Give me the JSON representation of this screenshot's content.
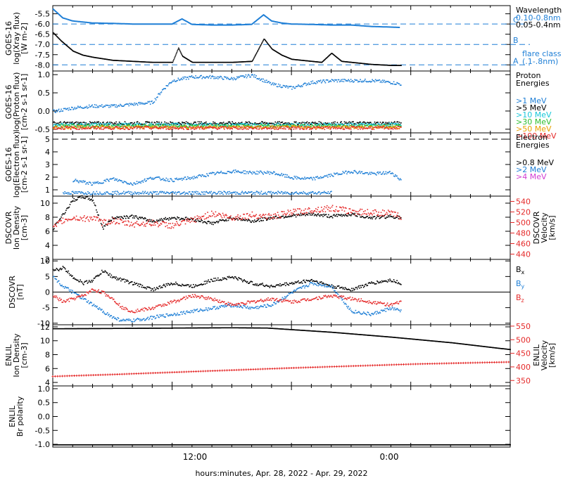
{
  "colors": {
    "black": "#000000",
    "blue": "#1f7fd6",
    "cyan": "#19c7d9",
    "green": "#2fbf2f",
    "orange": "#e8a100",
    "red": "#e52a2a",
    "magenta": "#d23cd2"
  },
  "xaxis": {
    "label": "hours:minutes, Apr. 28, 2022 - Apr. 29, 2022",
    "range_hours": [
      -6,
      17
    ],
    "ticks": [
      {
        "h": 0,
        "label": "12:00"
      },
      {
        "h": 10,
        "label": "0:00"
      }
    ]
  },
  "chart_data": [
    {
      "id": "xray",
      "type": "line",
      "ylabel": [
        "GOES-16",
        "log(Xray flux)",
        "[W m-2]"
      ],
      "ylim": [
        -8.3,
        -5.1
      ],
      "yticks": [
        -5.5,
        -6.0,
        -6.5,
        -7.0,
        -7.5,
        -8.0
      ],
      "tick_labels": [
        "-5.5",
        "-6.0",
        "-6.5",
        "-7.0",
        "-7.5",
        "-8.0"
      ],
      "flare_levels": [
        {
          "y": -6.0,
          "label": "C"
        },
        {
          "y": -7.0,
          "label": "B"
        },
        {
          "y": -8.0,
          "label": "A"
        }
      ],
      "legend_title": "Wavelength",
      "legend": [
        {
          "label": "0.10-0.8nm",
          "color": "#1f7fd6"
        },
        {
          "label": "0.05-0.4nm",
          "color": "#000000"
        }
      ],
      "note": [
        "flare class",
        "(.1-.8nm)"
      ],
      "series": [
        {
          "name": "0.10-0.8nm",
          "color": "#1f7fd6",
          "style": "line",
          "x": [
            -6,
            -5.5,
            -5,
            -4.5,
            -4,
            -3,
            -2,
            -1,
            0,
            0.5,
            1,
            2,
            3,
            4,
            4.6,
            5,
            5.5,
            6,
            7,
            8,
            9,
            10,
            11,
            11.5
          ],
          "y": [
            -5.25,
            -5.7,
            -5.85,
            -5.9,
            -5.95,
            -5.97,
            -6.0,
            -6.0,
            -6.0,
            -5.75,
            -6.02,
            -6.05,
            -6.05,
            -6.02,
            -5.55,
            -5.85,
            -5.95,
            -6.0,
            -6.02,
            -6.05,
            -6.05,
            -6.12,
            -6.15,
            -6.17
          ]
        },
        {
          "name": "0.05-0.4nm",
          "color": "#000000",
          "style": "dots",
          "x": [
            -6,
            -5.6,
            -5,
            -4.5,
            -4,
            -3,
            -2,
            -1,
            0,
            0.3,
            0.5,
            1,
            2,
            3,
            4,
            4.6,
            5,
            5.5,
            6,
            6.5,
            7,
            7.5,
            8,
            8.5,
            9,
            10,
            11,
            11.5
          ],
          "y": [
            -6.4,
            -6.8,
            -7.3,
            -7.5,
            -7.6,
            -7.75,
            -7.8,
            -7.85,
            -7.85,
            -7.15,
            -7.55,
            -7.85,
            -7.85,
            -7.85,
            -7.8,
            -6.7,
            -7.2,
            -7.5,
            -7.7,
            -7.75,
            -7.8,
            -7.85,
            -7.4,
            -7.8,
            -7.85,
            -7.95,
            -8.0,
            -8.0
          ]
        }
      ]
    },
    {
      "id": "protons",
      "type": "scatter",
      "ylabel": [
        "GOES-16",
        "log(Proton flux)",
        "[cm-2 s-1 sr-1]"
      ],
      "ylim": [
        -0.6,
        1.1
      ],
      "yticks": [
        1.0,
        0.5,
        0.0,
        -0.5
      ],
      "tick_labels": [
        "1.0",
        "0.5",
        "0.0",
        "-0.5"
      ],
      "legend_title": [
        "Proton",
        "Energies"
      ],
      "legend": [
        {
          "label": ">1 MeV",
          "color": "#1f7fd6"
        },
        {
          "label": ">5 MeV",
          "color": "#000000"
        },
        {
          "label": ">10 MeV",
          "color": "#19c7d9"
        },
        {
          "label": ">30 MeV",
          "color": "#2fbf2f"
        },
        {
          "label": ">50 MeV",
          "color": "#e8a100"
        },
        {
          "label": ">100 MeV",
          "color": "#e52a2a"
        }
      ],
      "series": [
        {
          "name": ">1 MeV",
          "color": "#1f7fd6",
          "x": [
            -6,
            -5,
            -4,
            -3,
            -2,
            -1,
            -0.5,
            0,
            1,
            2,
            3,
            4,
            5,
            6,
            7,
            8,
            9,
            10,
            11,
            11.5
          ],
          "y": [
            0.0,
            0.1,
            0.15,
            0.15,
            0.2,
            0.25,
            0.6,
            0.85,
            0.95,
            0.95,
            0.9,
            1.0,
            0.75,
            0.65,
            0.8,
            0.85,
            0.85,
            0.85,
            0.8,
            0.75
          ]
        },
        {
          "name": ">5 MeV",
          "color": "#000000",
          "x": [
            -6,
            11.5
          ],
          "y": [
            -0.32,
            -0.32
          ]
        },
        {
          "name": ">10 MeV",
          "color": "#19c7d9",
          "x": [
            -6,
            11.5
          ],
          "y": [
            -0.36,
            -0.36
          ]
        },
        {
          "name": ">30 MeV",
          "color": "#2fbf2f",
          "x": [
            -6,
            11.5
          ],
          "y": [
            -0.4,
            -0.4
          ]
        },
        {
          "name": ">50 MeV",
          "color": "#e8a100",
          "x": [
            -6,
            11.5
          ],
          "y": [
            -0.43,
            -0.43
          ]
        },
        {
          "name": ">100 MeV",
          "color": "#e52a2a",
          "x": [
            -6,
            11.5
          ],
          "y": [
            -0.45,
            -0.45
          ]
        }
      ]
    },
    {
      "id": "electrons",
      "type": "scatter",
      "ylabel": [
        "GOES-16",
        "log(Electron flux)",
        "[cm-2 s-1 sr-1]"
      ],
      "ylim": [
        0.5,
        5.5
      ],
      "yticks": [
        5,
        4,
        3,
        2,
        1
      ],
      "tick_labels": [
        "5",
        "4",
        "3",
        "2",
        "1"
      ],
      "threshold": 5.0,
      "legend_title": [
        "Electron",
        "Energies"
      ],
      "legend": [
        {
          "label": ">0.8 MeV",
          "color": "#000000"
        },
        {
          "label": ">2 MeV",
          "color": "#1f7fd6"
        },
        {
          "label": ">4 MeV",
          "color": "#d23cd2"
        }
      ],
      "series": [
        {
          "name": ">2 MeV",
          "color": "#1f7fd6",
          "x": [
            -5,
            -4,
            -3,
            -2,
            -1,
            0,
            1,
            2,
            3,
            4,
            5,
            6,
            7,
            8,
            9,
            10,
            11,
            11.5
          ],
          "y": [
            1.8,
            1.5,
            1.9,
            1.5,
            2.0,
            1.8,
            2.0,
            2.3,
            2.5,
            2.4,
            2.4,
            2.0,
            1.9,
            2.2,
            2.5,
            2.3,
            2.4,
            1.8
          ]
        },
        {
          "name": ">2 MeV low",
          "color": "#1f7fd6",
          "x": [
            -5.5,
            8.0
          ],
          "y": [
            0.8,
            0.8
          ]
        }
      ]
    },
    {
      "id": "dscovr_density",
      "type": "scatter",
      "ylabel": [
        "DSCOVR",
        "Ion Density",
        "[cm-3]"
      ],
      "ylim": [
        2,
        11
      ],
      "yticks": [
        10,
        8,
        6,
        4,
        2
      ],
      "tick_labels": [
        "10",
        "8",
        "6",
        "4",
        "2"
      ],
      "y2label": [
        "DSCOVR",
        "Velocity",
        "[km/s]"
      ],
      "y2lim": [
        430,
        550
      ],
      "y2ticks": [
        540,
        520,
        500,
        480,
        460,
        440
      ],
      "y2tick_labels": [
        "540",
        "520",
        "500",
        "480",
        "460",
        "440"
      ],
      "series": [
        {
          "name": "density",
          "color": "#000000",
          "axis": "y",
          "x": [
            -6,
            -5.5,
            -5,
            -4.5,
            -4,
            -3.5,
            -3,
            -2,
            -1,
            0,
            1,
            2,
            3,
            4,
            5,
            6,
            7,
            8,
            9,
            10,
            11,
            11.5
          ],
          "y": [
            6.5,
            8.5,
            10.5,
            11.0,
            10.5,
            6.5,
            8.0,
            8.2,
            7.5,
            8.0,
            7.8,
            7.2,
            8.0,
            7.5,
            8.0,
            8.3,
            8.5,
            8.2,
            8.5,
            8.0,
            8.2,
            8.0
          ]
        },
        {
          "name": "velocity",
          "color": "#e52a2a",
          "axis": "y2",
          "x": [
            -6,
            -5.5,
            -5,
            -4.5,
            -4,
            -3.5,
            -3,
            -2.5,
            -2,
            -1,
            0,
            1,
            2,
            3,
            4,
            5,
            6,
            7,
            8,
            9,
            10,
            11,
            11.5
          ],
          "y": [
            490,
            505,
            510,
            508,
            510,
            500,
            505,
            500,
            498,
            500,
            495,
            505,
            518,
            510,
            515,
            512,
            520,
            525,
            528,
            522,
            520,
            518,
            512
          ]
        }
      ]
    },
    {
      "id": "dscovr_bfield",
      "type": "scatter",
      "ylabel": [
        "DSCOVR",
        "[nT]"
      ],
      "ylim": [
        -10.5,
        10.5
      ],
      "yticks": [
        10,
        5,
        0,
        -5,
        -10
      ],
      "tick_labels": [
        "10",
        "5",
        "0",
        "-5",
        "-10"
      ],
      "zero_line": true,
      "legend": [
        {
          "label": "Bx",
          "base": "B",
          "sub": "x",
          "color": "#000000"
        },
        {
          "label": "By",
          "base": "B",
          "sub": "y",
          "color": "#1f7fd6"
        },
        {
          "label": "Bz",
          "base": "B",
          "sub": "z",
          "color": "#e52a2a"
        }
      ],
      "series": [
        {
          "name": "Bx",
          "color": "#000000",
          "x": [
            -6,
            -5.5,
            -5,
            -4.5,
            -4,
            -3.5,
            -3,
            -2,
            -1,
            0,
            1,
            2,
            3,
            4,
            5,
            6,
            7,
            8,
            9,
            10,
            11,
            11.5
          ],
          "y": [
            7,
            8,
            5,
            3,
            4,
            7,
            5,
            3,
            1,
            3,
            2,
            4,
            5,
            3,
            2,
            3,
            4,
            2,
            1,
            3,
            4,
            3
          ]
        },
        {
          "name": "By",
          "color": "#1f7fd6",
          "x": [
            -6,
            -5.5,
            -5,
            -4.5,
            -4,
            -3.5,
            -3,
            -2.5,
            -2,
            -1,
            0,
            1,
            2,
            3,
            4,
            5,
            6,
            7,
            8,
            9,
            10,
            11,
            11.5
          ],
          "y": [
            5,
            2,
            0,
            -2,
            -4,
            -6,
            -8,
            -9,
            -9,
            -8,
            -7,
            -6,
            -5,
            -4,
            -5,
            -4,
            0,
            3,
            2,
            -6,
            -7,
            -5,
            -6
          ]
        },
        {
          "name": "Bz",
          "color": "#e52a2a",
          "x": [
            -6,
            -5.5,
            -5,
            -4.5,
            -4,
            -3.5,
            -3,
            -2.5,
            -2,
            -1,
            0,
            1,
            2,
            3,
            4,
            5,
            6,
            7,
            8,
            9,
            10,
            11,
            11.5
          ],
          "y": [
            -1,
            -3,
            -2,
            -1,
            1,
            0,
            -2,
            -5,
            -6,
            -5,
            -3,
            -1,
            -2,
            -4,
            -3,
            -2,
            -3,
            -2,
            -1,
            -2,
            -3,
            -4,
            -3
          ]
        }
      ]
    },
    {
      "id": "enlil_density",
      "type": "line",
      "ylabel": [
        "ENLIL",
        "Ion Density",
        "[cm-3]"
      ],
      "ylim": [
        3.5,
        12.3
      ],
      "yticks": [
        12,
        10,
        8,
        6,
        4
      ],
      "tick_labels": [
        "12",
        "10",
        "8",
        "6",
        "4"
      ],
      "y2label": [
        "ENLIL",
        "Velocity",
        "[km/s]"
      ],
      "y2lim": [
        330,
        555
      ],
      "y2ticks": [
        550,
        500,
        450,
        400,
        350
      ],
      "y2tick_labels": [
        "550",
        "500",
        "450",
        "400",
        "350"
      ],
      "series": [
        {
          "name": "density",
          "color": "#000000",
          "axis": "y",
          "style": "dots",
          "x": [
            -6,
            0,
            3,
            4.8,
            8,
            11,
            14,
            17
          ],
          "y": [
            11.8,
            11.9,
            11.95,
            11.9,
            11.3,
            10.6,
            9.8,
            8.8
          ]
        },
        {
          "name": "velocity",
          "color": "#e52a2a",
          "axis": "y2",
          "style": "cross",
          "x": [
            -6,
            -3,
            0,
            3,
            6,
            9,
            12,
            15,
            17
          ],
          "y": [
            365,
            372,
            380,
            388,
            396,
            403,
            410,
            415,
            418
          ]
        }
      ]
    },
    {
      "id": "enlil_polarity",
      "type": "line",
      "ylabel": [
        "ENLIL",
        "Br polarity"
      ],
      "ylim": [
        -1.1,
        1.1
      ],
      "yticks": [
        1.0,
        0.5,
        0.0,
        -0.5,
        -1.0
      ],
      "tick_labels": [
        "1.0",
        "0.5",
        "0.0",
        "-0.5",
        "-1.0"
      ],
      "series": [
        {
          "name": "polarity",
          "color": "#000000",
          "style": "dots",
          "x": [
            -6,
            17
          ],
          "y": [
            -1.0,
            -1.0
          ]
        }
      ]
    }
  ]
}
